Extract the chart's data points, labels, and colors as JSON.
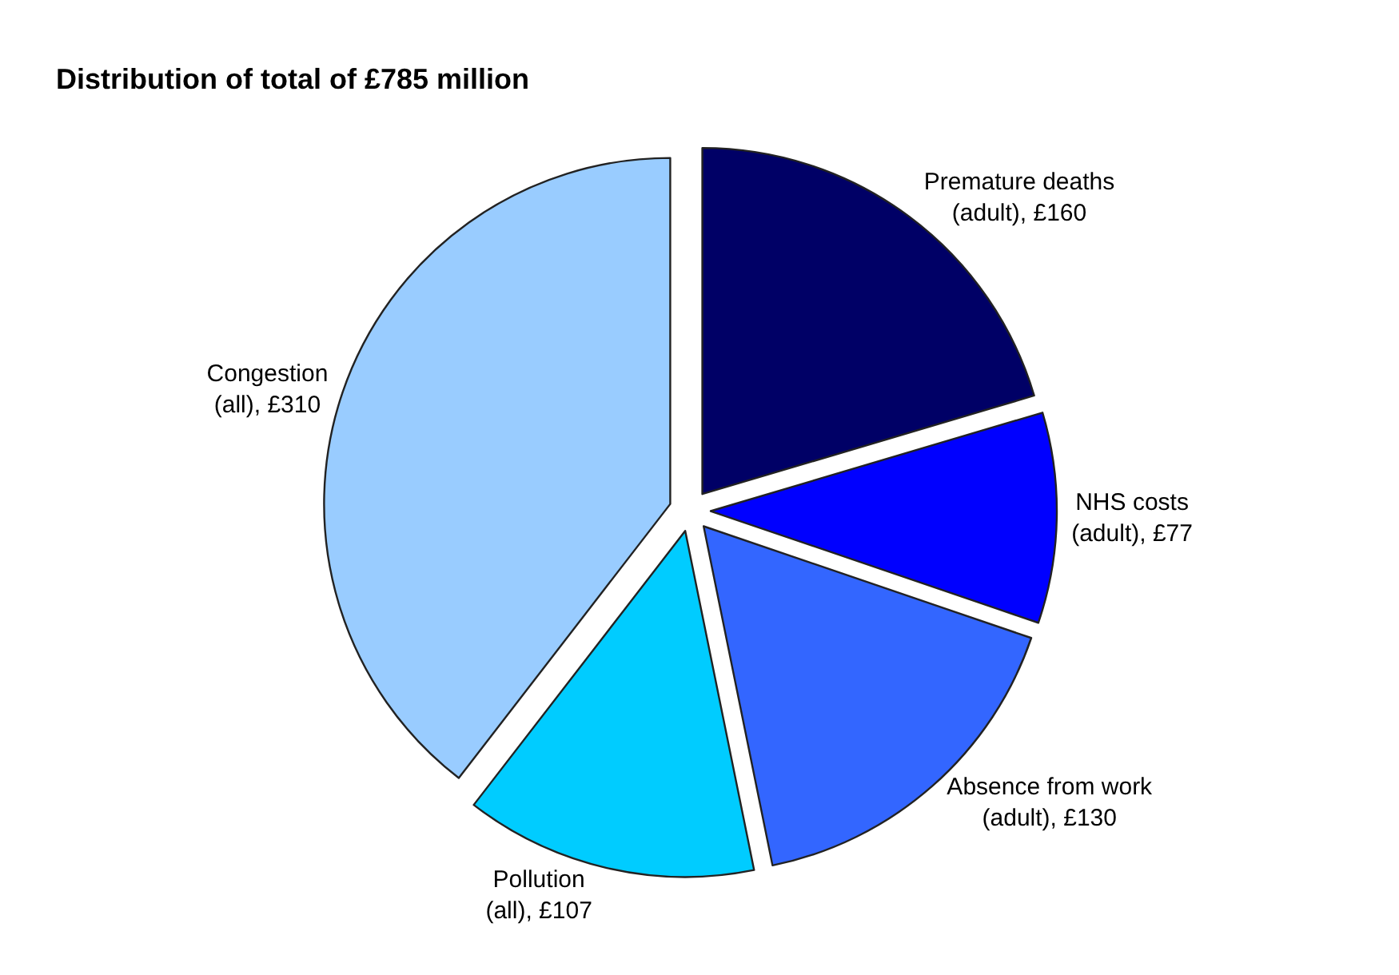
{
  "chart_data": {
    "type": "pie",
    "title": "Distribution of total of £785 million",
    "categories": [
      "Premature deaths (adult), £160",
      "NHS costs (adult), £77",
      "Absence from work (adult), £130",
      "Pollution (all), £107",
      "Congestion (all), £310"
    ],
    "values": [
      160,
      77,
      130,
      107,
      310
    ],
    "colors": [
      "#000066",
      "#0000ff",
      "#3366ff",
      "#00ccff",
      "#99ccff"
    ],
    "legend": false
  }
}
